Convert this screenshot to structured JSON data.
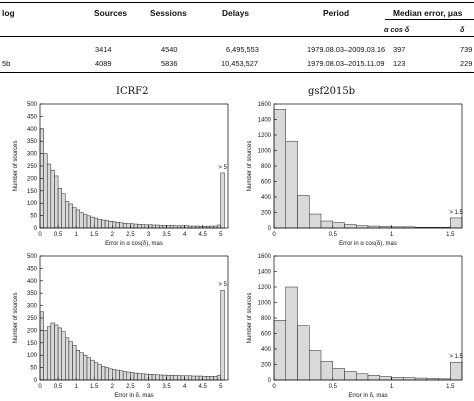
{
  "table": {
    "headers": {
      "catalog": "log",
      "sources": "Sources",
      "sessions": "Sessions",
      "delays": "Delays",
      "period": "Period",
      "median": "Median error, μas"
    },
    "subheaders": {
      "ra": "α cos δ",
      "dec": "δ"
    },
    "rows": [
      {
        "name": "",
        "sources": "3414",
        "sessions": "4540",
        "delays": "6,495,553",
        "period": "1979.08.03–2009.03.16",
        "ra": "397",
        "dec": "739"
      },
      {
        "name": "5b",
        "sources": "4089",
        "sessions": "5836",
        "delays": "10,453,527",
        "period": "1979.08.03–2015.11.09",
        "ra": "123",
        "dec": "229"
      }
    ]
  },
  "figure": {
    "col_titles": [
      "ICRF2",
      "gsf2015b"
    ]
  },
  "chart_data": [
    {
      "type": "bar",
      "title": "ICRF2",
      "xlabel": "Error in α cos(δ), mas",
      "ylabel": "Number of sources",
      "xlim": [
        0,
        5.2
      ],
      "ylim": [
        0,
        500
      ],
      "xticks": [
        "0",
        "0.5",
        "1",
        "1.5",
        "2",
        "2.5",
        "3",
        "3.5",
        "4",
        "4.5",
        "5"
      ],
      "yticks": [
        "0",
        "50",
        "100",
        "150",
        "200",
        "250",
        "300",
        "350",
        "400",
        "450",
        "500"
      ],
      "bin_width": 0.1,
      "values": [
        400,
        300,
        258,
        233,
        210,
        160,
        138,
        107,
        97,
        82,
        73,
        62,
        54,
        49,
        44,
        40,
        35,
        32,
        30,
        27,
        25,
        23,
        21,
        19,
        18,
        17,
        16,
        15,
        14,
        13,
        13,
        12,
        12,
        11,
        11,
        10,
        10,
        9,
        9,
        9,
        9,
        8,
        8,
        8,
        7,
        7,
        7,
        8,
        8,
        12
      ],
      "overflow_value": 222,
      "annotation": "> 5"
    },
    {
      "type": "bar",
      "title": "gsf2015b",
      "xlabel": "Error in α cos(δ), mas",
      "ylabel": "Number of sources",
      "xlim": [
        0,
        1.6
      ],
      "ylim": [
        0,
        1600
      ],
      "xticks": [
        "0",
        "0.5",
        "1",
        "1.5"
      ],
      "yticks": [
        "0",
        "200",
        "400",
        "600",
        "800",
        "1000",
        "1200",
        "1400",
        "1600"
      ],
      "bin_width": 0.1,
      "values": [
        1530,
        1120,
        420,
        180,
        90,
        70,
        45,
        30,
        25,
        20,
        15,
        15,
        10,
        10,
        10
      ],
      "overflow_value": 130,
      "annotation": "> 1.5"
    },
    {
      "type": "bar",
      "title": "",
      "xlabel": "Error in δ, mas",
      "ylabel": "Number of sources",
      "xlim": [
        0,
        5.2
      ],
      "ylim": [
        0,
        500
      ],
      "xticks": [
        "0",
        "0.5",
        "1",
        "1.5",
        "2",
        "2.5",
        "3",
        "3.5",
        "4",
        "4.5",
        "5"
      ],
      "yticks": [
        "0",
        "50",
        "100",
        "150",
        "200",
        "250",
        "300",
        "350",
        "400",
        "450",
        "500"
      ],
      "bin_width": 0.1,
      "values": [
        275,
        200,
        215,
        230,
        222,
        210,
        195,
        170,
        155,
        140,
        120,
        110,
        100,
        90,
        80,
        70,
        62,
        55,
        50,
        45,
        42,
        40,
        37,
        34,
        32,
        30,
        28,
        26,
        25,
        24,
        23,
        22,
        21,
        20,
        20,
        19,
        19,
        18,
        18,
        17,
        17,
        17,
        16,
        16,
        16,
        15,
        15,
        15,
        15,
        18
      ],
      "overflow_value": 362,
      "annotation": "> 5"
    },
    {
      "type": "bar",
      "title": "",
      "xlabel": "Error in δ, mas",
      "ylabel": "Number of sources",
      "xlim": [
        0,
        1.6
      ],
      "ylim": [
        0,
        1600
      ],
      "xticks": [
        "0",
        "0.5",
        "1",
        "1.5"
      ],
      "yticks": [
        "0",
        "200",
        "400",
        "600",
        "800",
        "1000",
        "1200",
        "1400",
        "1600"
      ],
      "bin_width": 0.1,
      "values": [
        770,
        1200,
        700,
        380,
        240,
        150,
        110,
        80,
        60,
        45,
        35,
        30,
        25,
        20,
        15
      ],
      "overflow_value": 230,
      "annotation": "> 1.5"
    }
  ]
}
